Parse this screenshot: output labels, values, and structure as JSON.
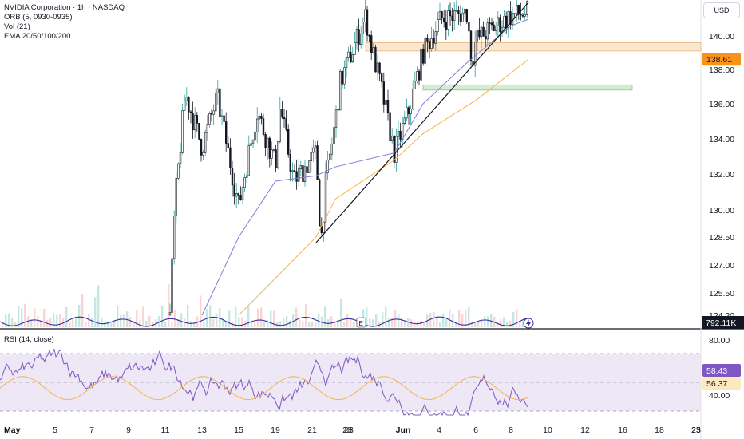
{
  "header": {
    "symbol_line": "NVIDIA Corporation · 1h · NASDAQ",
    "indicators": [
      "ORB (5, 0930-0935)",
      "Vol (21)",
      "EMA 20/50/100/200"
    ],
    "currency_button": "USD"
  },
  "rsi_panel": {
    "label": "RSI (14, close)"
  },
  "colors": {
    "up": "#26a69a",
    "down": "#131722",
    "ema_fast": "#7b7ed4",
    "ema_slow": "#f5b44a",
    "rsi": "#7e57c2",
    "rsi_ma": "#f5b44a",
    "band_bg": "#ede7f6",
    "zone_orange": "#fbe6cf",
    "zone_green": "#d5ecd4",
    "price_tag": "#f7931a",
    "volume_osc": "#3b2a9e",
    "vol_tag": "#131722"
  },
  "chart_data": {
    "type": "candlestick",
    "title": "NVIDIA Corporation · 1h · NASDAQ",
    "price_axis": {
      "ticks": [
        "140.00",
        "138.00",
        "136.00",
        "134.00",
        "132.00",
        "130.00",
        "128.50",
        "127.00",
        "125.50",
        "124.20"
      ],
      "current_price": "138.61",
      "volume_value": "792.11K"
    },
    "x_axis": {
      "ticks": [
        "May",
        "5",
        "7",
        "9",
        "11",
        "13",
        "15",
        "19",
        "21",
        "23",
        "28",
        "Jun",
        "4",
        "6",
        "8",
        "10",
        "12",
        "16",
        "18",
        "23",
        "25"
      ]
    },
    "price_path": [
      {
        "date": "May 13",
        "price": 124.2
      },
      {
        "date": "May 13",
        "price": 130.2
      },
      {
        "date": "May 14",
        "price": 136.6
      },
      {
        "date": "May 15",
        "price": 133.5
      },
      {
        "date": "May 16",
        "price": 136.4
      },
      {
        "date": "May 19",
        "price": 130.2
      },
      {
        "date": "May 20",
        "price": 135.6
      },
      {
        "date": "May 21",
        "price": 132.5
      },
      {
        "date": "May 21",
        "price": 135.8
      },
      {
        "date": "May 22",
        "price": 131.6
      },
      {
        "date": "May 23",
        "price": 133.2
      },
      {
        "date": "May 23",
        "price": 128.2
      },
      {
        "date": "May 23",
        "price": 131.4
      },
      {
        "date": "May 27",
        "price": 135.0
      },
      {
        "date": "May 27",
        "price": 137.2
      },
      {
        "date": "May 28",
        "price": 141.2
      },
      {
        "date": "May 28",
        "price": 139.6
      },
      {
        "date": "May 29",
        "price": 136.8
      },
      {
        "date": "May 30",
        "price": 133.2
      },
      {
        "date": "Jun 2",
        "price": 135.6
      },
      {
        "date": "Jun 3",
        "price": 139.0
      },
      {
        "date": "Jun 4",
        "price": 141.0
      },
      {
        "date": "Jun 5",
        "price": 141.4
      },
      {
        "date": "Jun 5",
        "price": 138.4
      },
      {
        "date": "Jun 6",
        "price": 139.8
      },
      {
        "date": "Jun 9",
        "price": 141.2
      },
      {
        "date": "Jun 10",
        "price": 141.4
      }
    ],
    "ema_fast": [
      {
        "date": "May 15",
        "price": 124.2
      },
      {
        "date": "May 19",
        "price": 128.5
      },
      {
        "date": "May 21",
        "price": 131.6
      },
      {
        "date": "May 23",
        "price": 131.9
      },
      {
        "date": "May 27",
        "price": 132.4
      },
      {
        "date": "May 30",
        "price": 133.2
      },
      {
        "date": "Jun 3",
        "price": 136.0
      },
      {
        "date": "Jun 5",
        "price": 138.4
      },
      {
        "date": "Jun 9",
        "price": 140.6
      },
      {
        "date": "Jun 10",
        "price": 141.0
      }
    ],
    "ema_slow": [
      {
        "date": "May 19",
        "price": 124.2
      },
      {
        "date": "May 23",
        "price": 128.5
      },
      {
        "date": "May 27",
        "price": 130.6
      },
      {
        "date": "May 30",
        "price": 132.8
      },
      {
        "date": "Jun 3",
        "price": 134.3
      },
      {
        "date": "Jun 6",
        "price": 136.2
      },
      {
        "date": "Jun 10",
        "price": 138.6
      }
    ],
    "trendline": [
      {
        "date": "May 23",
        "price": 128.2
      },
      {
        "date": "Jun 10",
        "price": 142.0
      }
    ],
    "zones": [
      {
        "name": "resistance",
        "top": 139.6,
        "bottom": 139.1,
        "from": "May 28",
        "to": "Jun 25"
      },
      {
        "name": "support",
        "top": 137.1,
        "bottom": 136.8,
        "from": "Jun 3",
        "to": "Jun 18"
      }
    ],
    "rsi": {
      "ticks": [
        "80.00",
        "40.00"
      ],
      "value": "58.43",
      "ma_value": "56.37"
    }
  }
}
